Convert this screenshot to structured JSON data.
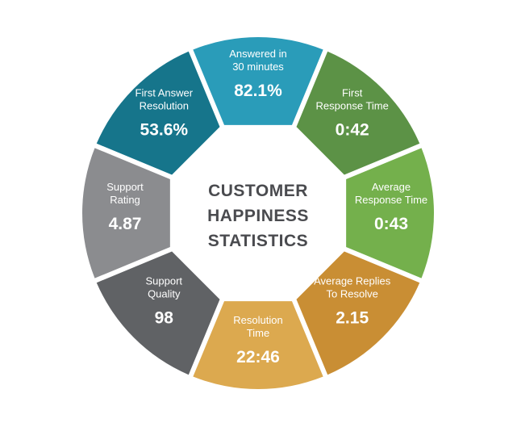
{
  "center": {
    "line1": "CUSTOMER",
    "line2": "HAPPINESS",
    "line3": "STATISTICS"
  },
  "segments": [
    {
      "label1": "Answered in",
      "label2": "30 minutes",
      "value": "82.1%",
      "color": "#2a9cb9"
    },
    {
      "label1": "First",
      "label2": "Response Time",
      "value": "0:42",
      "color": "#5c9246"
    },
    {
      "label1": "Average",
      "label2": "Response Time",
      "value": "0:43",
      "color": "#74b04c"
    },
    {
      "label1": "Average Replies",
      "label2": "To Resolve",
      "value": "2.15",
      "color": "#c98e34"
    },
    {
      "label1": "Resolution",
      "label2": "Time",
      "value": "22:46",
      "color": "#dca94f"
    },
    {
      "label1": "Support",
      "label2": "Quality",
      "value": "98",
      "color": "#606265"
    },
    {
      "label1": "Support",
      "label2": "Rating",
      "value": "4.87",
      "color": "#8b8c8f"
    },
    {
      "label1": "First Answer",
      "label2": "Resolution",
      "value": "53.6%",
      "color": "#16758b"
    }
  ]
}
